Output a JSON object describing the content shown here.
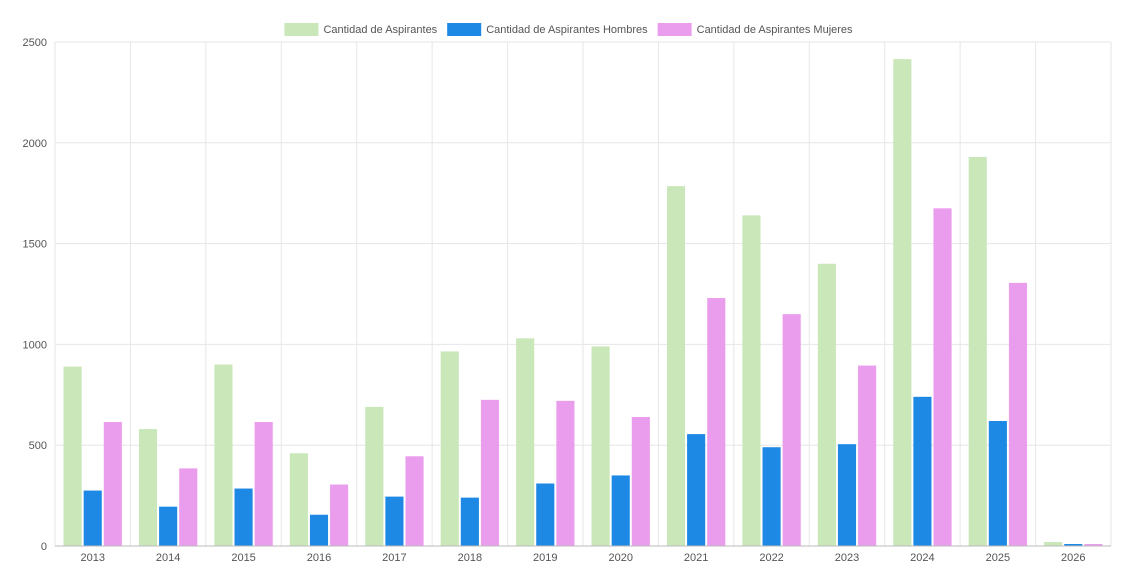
{
  "chart_data": {
    "type": "bar",
    "title": "",
    "xlabel": "",
    "ylabel": "",
    "legend_position": "top-center",
    "grid": true,
    "ylim": [
      0,
      2500
    ],
    "yticks": [
      0,
      500,
      1000,
      1500,
      2000,
      2500
    ],
    "categories": [
      "2013",
      "2014",
      "2015",
      "2016",
      "2017",
      "2018",
      "2019",
      "2020",
      "2021",
      "2022",
      "2023",
      "2024",
      "2025",
      "2026"
    ],
    "series": [
      {
        "name": "Cantidad de Aspirantes",
        "color": "#c9e7b8",
        "values": [
          890,
          580,
          900,
          460,
          690,
          965,
          1030,
          990,
          1785,
          1640,
          1400,
          2415,
          1930,
          20
        ]
      },
      {
        "name": "Cantidad de Aspirantes Hombres",
        "color": "#1e88e5",
        "values": [
          275,
          195,
          285,
          155,
          245,
          240,
          310,
          350,
          555,
          490,
          505,
          740,
          620,
          10
        ]
      },
      {
        "name": "Cantidad de Aspirantes Mujeres",
        "color": "#eb9ded",
        "values": [
          615,
          385,
          615,
          305,
          445,
          725,
          720,
          640,
          1230,
          1150,
          895,
          1675,
          1305,
          10
        ]
      }
    ]
  }
}
